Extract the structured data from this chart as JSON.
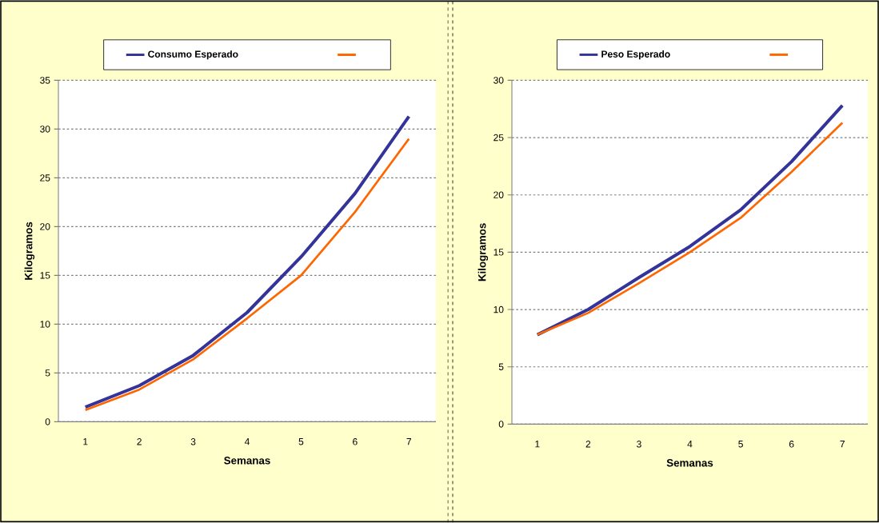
{
  "chart_data": [
    {
      "type": "line",
      "categories": [
        "1",
        "2",
        "3",
        "4",
        "5",
        "6",
        "7"
      ],
      "xlabel": "Semanas",
      "ylabel": "Kilogramos",
      "ylim": [
        0,
        35
      ],
      "yticks": [
        0,
        5,
        10,
        15,
        20,
        25,
        30,
        35
      ],
      "grid": "y",
      "legend": "top",
      "line_style": "solid",
      "marker": "none",
      "series": [
        {
          "name": "Consumo Esperado",
          "color": "#333399",
          "values": [
            1.5,
            3.7,
            6.8,
            11.2,
            16.9,
            23.4,
            31.3
          ]
        },
        {
          "color": "#ff6600",
          "values": [
            1.2,
            3.3,
            6.4,
            10.6,
            15.0,
            21.5,
            29.0
          ]
        }
      ]
    },
    {
      "type": "line",
      "categories": [
        "1",
        "2",
        "3",
        "4",
        "5",
        "6",
        "7"
      ],
      "xlabel": "Semanas",
      "ylabel": "Kilogramos",
      "ylim": [
        0,
        30
      ],
      "yticks": [
        0,
        5,
        10,
        15,
        20,
        25,
        30
      ],
      "grid": "y",
      "legend": "top",
      "line_style": "solid",
      "marker": "none",
      "series": [
        {
          "name": "Peso Esperado",
          "color": "#333399",
          "values": [
            7.8,
            10.0,
            12.8,
            15.5,
            18.7,
            22.9,
            27.8
          ]
        },
        {
          "color": "#ff6600",
          "values": [
            7.8,
            9.7,
            12.3,
            15.0,
            18.0,
            22.0,
            26.3
          ]
        }
      ]
    }
  ]
}
